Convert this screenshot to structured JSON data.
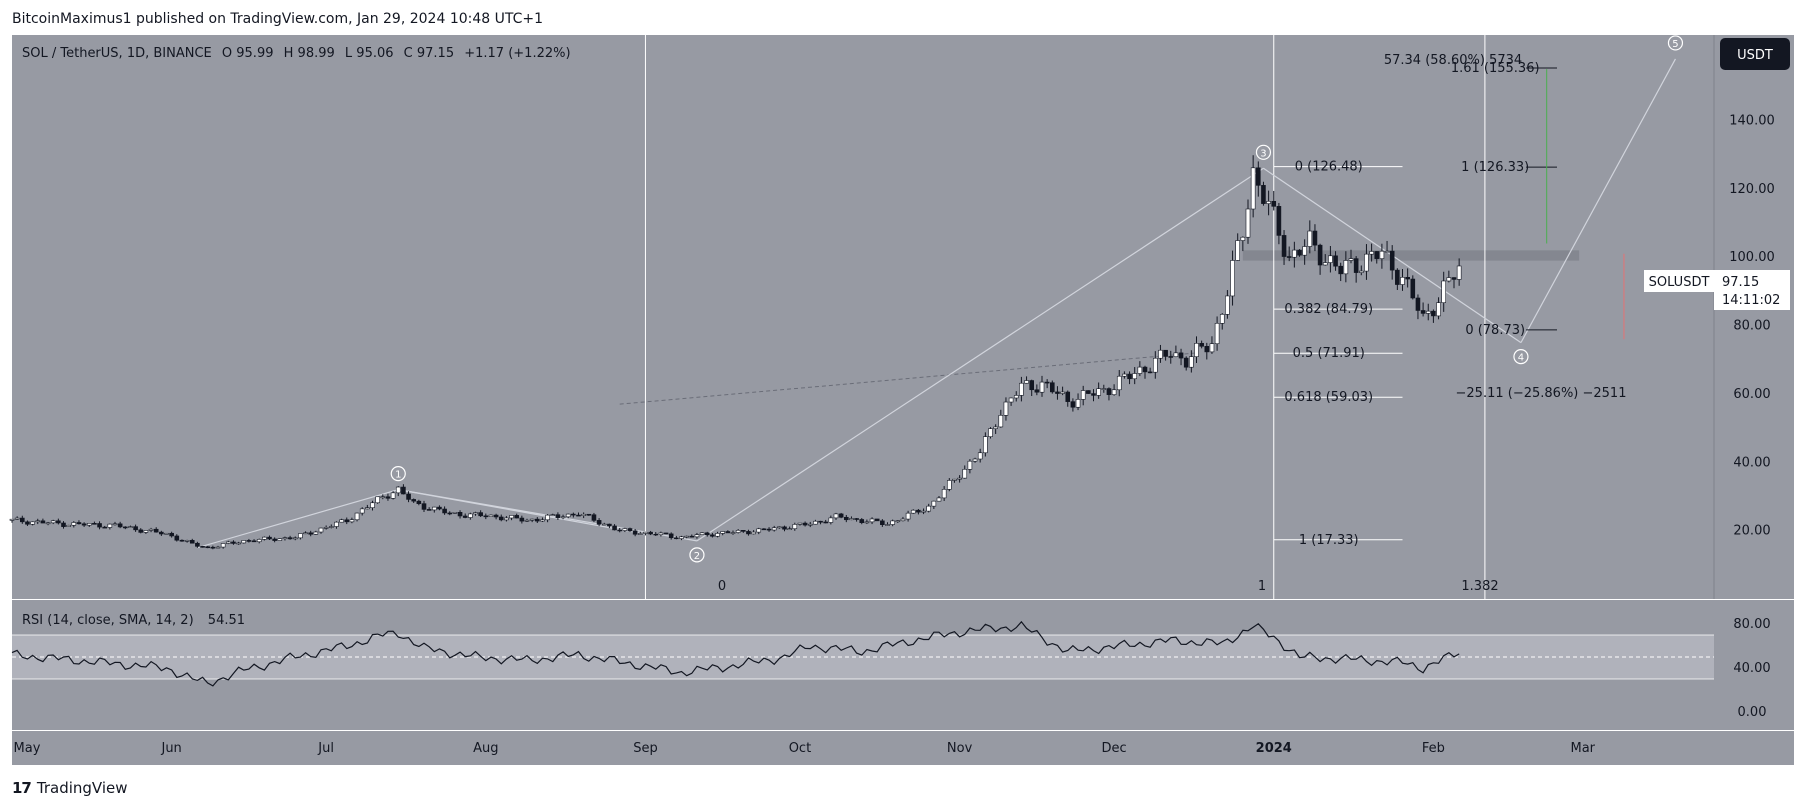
{
  "header": {
    "published_line": "BitcoinMaximus1 published on TradingView.com, Jan 29, 2024 10:48 UTC+1"
  },
  "footer": {
    "brand_logo": "17",
    "brand_name": "TradingView"
  },
  "colors": {
    "panel_bg": "#979aa3",
    "axis_bg": "#979aa3",
    "rsi_band": "#b2b5be",
    "candle_up": "#ffffff",
    "candle_down": "#131722",
    "line": "#d1d4dc",
    "text": "#131722",
    "white": "#ffffff"
  },
  "chart_data": {
    "type": "candlestick",
    "symbol_info": {
      "title": "SOL / TetherUS, 1D, BINANCE",
      "open_label": "O",
      "open": "95.99",
      "high_label": "H",
      "high": "98.99",
      "low_label": "L",
      "low": "95.06",
      "close_label": "C",
      "close": "97.15",
      "change": "+1.17 (+1.22%)"
    },
    "currency_badge": "USDT",
    "price_axis": {
      "ticks": [
        "140.00",
        "120.00",
        "100.00",
        "80.00",
        "60.00",
        "40.00",
        "20.00"
      ],
      "values": [
        140,
        120,
        100,
        80,
        60,
        40,
        20
      ],
      "ylim": [
        0,
        165
      ]
    },
    "last_price": {
      "symbol": "SOLUSDT",
      "value": "97.15",
      "countdown": "14:11:02"
    },
    "time_axis": {
      "labels": [
        "May",
        "Jun",
        "Jul",
        "Aug",
        "Sep",
        "Oct",
        "Nov",
        "Dec",
        "2024",
        "Feb",
        "Mar"
      ],
      "day_index": [
        0,
        31,
        61,
        92,
        123,
        153,
        184,
        214,
        245,
        276,
        305
      ]
    },
    "price_path": [
      [
        0,
        23
      ],
      [
        10,
        22
      ],
      [
        20,
        21.5
      ],
      [
        30,
        19
      ],
      [
        35,
        16
      ],
      [
        38,
        15
      ],
      [
        45,
        17
      ],
      [
        55,
        18
      ],
      [
        65,
        23
      ],
      [
        72,
        30
      ],
      [
        75,
        32
      ],
      [
        78,
        28
      ],
      [
        85,
        25
      ],
      [
        95,
        24
      ],
      [
        100,
        23
      ],
      [
        110,
        25
      ],
      [
        118,
        20
      ],
      [
        125,
        19
      ],
      [
        130,
        18
      ],
      [
        135,
        19
      ],
      [
        145,
        20
      ],
      [
        155,
        22
      ],
      [
        160,
        24
      ],
      [
        170,
        22
      ],
      [
        178,
        27
      ],
      [
        183,
        35
      ],
      [
        188,
        43
      ],
      [
        192,
        55
      ],
      [
        196,
        62
      ],
      [
        200,
        63
      ],
      [
        205,
        58
      ],
      [
        212,
        61
      ],
      [
        218,
        66
      ],
      [
        225,
        72
      ],
      [
        228,
        70
      ],
      [
        233,
        75
      ],
      [
        236,
        90
      ],
      [
        239,
        108
      ],
      [
        241,
        125
      ],
      [
        243,
        118
      ],
      [
        248,
        100
      ],
      [
        252,
        104
      ],
      [
        258,
        96
      ],
      [
        262,
        99
      ],
      [
        266,
        101
      ],
      [
        270,
        94
      ],
      [
        274,
        82
      ],
      [
        277,
        88
      ],
      [
        281,
        97
      ]
    ],
    "wave_labels": [
      {
        "label": "1",
        "day": 75,
        "price": 32
      },
      {
        "label": "2",
        "day": 133,
        "price": 17
      },
      {
        "label": "3",
        "day": 243,
        "price": 126
      },
      {
        "label": "4",
        "day": 293,
        "price": 75
      },
      {
        "label": "5",
        "day": 323,
        "price": 158
      }
    ],
    "fib_retracement": [
      {
        "ratio": "0",
        "text": "0 (126.48)",
        "price": 126.48
      },
      {
        "ratio": "0.382",
        "text": "0.382 (84.79)",
        "price": 84.79
      },
      {
        "ratio": "0.5",
        "text": "0.5 (71.91)",
        "price": 71.91
      },
      {
        "ratio": "0.618",
        "text": "0.618 (59.03)",
        "price": 59.03
      },
      {
        "ratio": "1",
        "text": "1 (17.33)",
        "price": 17.33
      }
    ],
    "fib_extension": [
      {
        "text": "1.61 (155.36)",
        "price": 155.36
      },
      {
        "text": "1 (126.33)",
        "price": 126.33
      },
      {
        "text": "0 (78.73)",
        "price": 78.73
      }
    ],
    "measure_up": "57.34 (58.60%) 5734",
    "measure_down": "−25.11 (−25.86%) −2511",
    "time_fib_labels": [
      "0",
      "1",
      "1.382"
    ],
    "resistance_zone": {
      "low": 99,
      "high": 102
    },
    "rsi": {
      "title": "RSI (14, close, SMA, 14, 2)",
      "value": "54.51",
      "ticks": [
        "80.00",
        "40.00",
        "0.00"
      ],
      "tick_values": [
        80,
        40,
        0
      ],
      "band": [
        30,
        70
      ],
      "midline": 50,
      "path": [
        [
          0,
          52
        ],
        [
          15,
          46
        ],
        [
          30,
          40
        ],
        [
          35,
          30
        ],
        [
          38,
          26
        ],
        [
          45,
          38
        ],
        [
          55,
          50
        ],
        [
          65,
          60
        ],
        [
          72,
          70
        ],
        [
          75,
          72
        ],
        [
          80,
          58
        ],
        [
          90,
          50
        ],
        [
          100,
          47
        ],
        [
          110,
          52
        ],
        [
          120,
          44
        ],
        [
          130,
          36
        ],
        [
          140,
          42
        ],
        [
          150,
          50
        ],
        [
          155,
          60
        ],
        [
          165,
          55
        ],
        [
          175,
          65
        ],
        [
          183,
          72
        ],
        [
          190,
          76
        ],
        [
          196,
          78
        ],
        [
          205,
          55
        ],
        [
          215,
          60
        ],
        [
          225,
          65
        ],
        [
          235,
          62
        ],
        [
          241,
          78
        ],
        [
          245,
          68
        ],
        [
          250,
          50
        ],
        [
          260,
          48
        ],
        [
          270,
          45
        ],
        [
          274,
          40
        ],
        [
          281,
          54
        ]
      ]
    }
  }
}
